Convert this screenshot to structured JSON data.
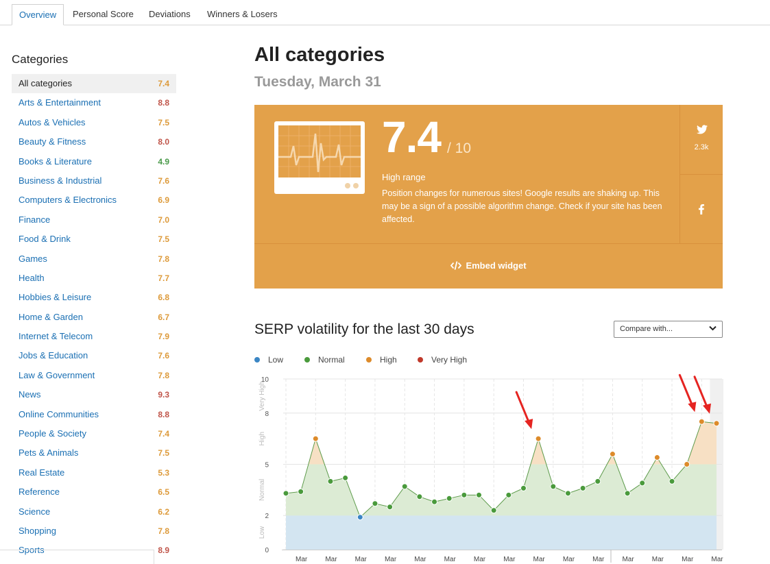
{
  "tabs": [
    "Overview",
    "Personal Score",
    "Deviations",
    "Winners & Losers"
  ],
  "sidebar": {
    "title": "Categories",
    "items": [
      {
        "label": "All categories",
        "value": "7.4"
      },
      {
        "label": "Arts & Entertainment",
        "value": "8.8"
      },
      {
        "label": "Autos & Vehicles",
        "value": "7.5"
      },
      {
        "label": "Beauty & Fitness",
        "value": "8.0"
      },
      {
        "label": "Books & Literature",
        "value": "4.9"
      },
      {
        "label": "Business & Industrial",
        "value": "7.6"
      },
      {
        "label": "Computers & Electronics",
        "value": "6.9"
      },
      {
        "label": "Finance",
        "value": "7.0"
      },
      {
        "label": "Food & Drink",
        "value": "7.5"
      },
      {
        "label": "Games",
        "value": "7.8"
      },
      {
        "label": "Health",
        "value": "7.7"
      },
      {
        "label": "Hobbies & Leisure",
        "value": "6.8"
      },
      {
        "label": "Home & Garden",
        "value": "6.7"
      },
      {
        "label": "Internet & Telecom",
        "value": "7.9"
      },
      {
        "label": "Jobs & Education",
        "value": "7.6"
      },
      {
        "label": "Law & Government",
        "value": "7.8"
      },
      {
        "label": "News",
        "value": "9.3"
      },
      {
        "label": "Online Communities",
        "value": "8.8"
      },
      {
        "label": "People & Society",
        "value": "7.4"
      },
      {
        "label": "Pets & Animals",
        "value": "7.5"
      },
      {
        "label": "Real Estate",
        "value": "5.3"
      },
      {
        "label": "Reference",
        "value": "6.5"
      },
      {
        "label": "Science",
        "value": "6.2"
      },
      {
        "label": "Shopping",
        "value": "7.8"
      },
      {
        "label": "Sports",
        "value": "8.9"
      }
    ]
  },
  "main": {
    "title": "All categories",
    "date": "Tuesday, March 31",
    "score": "7.4",
    "score_max": "/ 10",
    "range_label": "High range",
    "description": "Position changes for numerous sites! Google results are shaking up. This may be a sign of a possible algorithm change. Check if your site has been affected.",
    "twitter_count": "2.3k",
    "embed_label": "Embed widget",
    "chart_title": "SERP volatility for the last 30 days",
    "compare_placeholder": "Compare with..."
  },
  "colors": {
    "accent": "#e3a14a",
    "link": "#1a6fb3",
    "low": "#3b86c4",
    "normal": "#4a9a3c",
    "high": "#dd8b2b",
    "very_high": "#c0392b"
  },
  "chart_data": {
    "type": "area",
    "legend": [
      "Low",
      "Normal",
      "High",
      "Very High"
    ],
    "x_tick_label": "Mar",
    "y_ticks": [
      0,
      2,
      5,
      8,
      10
    ],
    "ylim": [
      0,
      10
    ],
    "band_labels": [
      "Low",
      "Normal",
      "High",
      "Very High"
    ],
    "bands": [
      [
        0,
        2
      ],
      [
        2,
        5
      ],
      [
        5,
        8
      ],
      [
        8,
        10
      ]
    ],
    "x": [
      1,
      2,
      3,
      4,
      5,
      6,
      7,
      8,
      9,
      10,
      11,
      12,
      13,
      14,
      15,
      16,
      17,
      18,
      19,
      20,
      21,
      22,
      23,
      24,
      25,
      26,
      27,
      28,
      29,
      30
    ],
    "values": [
      3.3,
      3.4,
      6.5,
      4.0,
      4.2,
      1.9,
      2.7,
      2.5,
      3.7,
      3.1,
      2.8,
      3.0,
      3.2,
      3.2,
      2.3,
      3.2,
      3.6,
      6.5,
      3.7,
      3.3,
      3.6,
      4.0,
      5.6,
      3.3,
      3.9,
      5.4,
      4.0,
      5.0,
      7.5,
      7.4
    ],
    "markers": [
      18,
      29,
      30
    ]
  }
}
